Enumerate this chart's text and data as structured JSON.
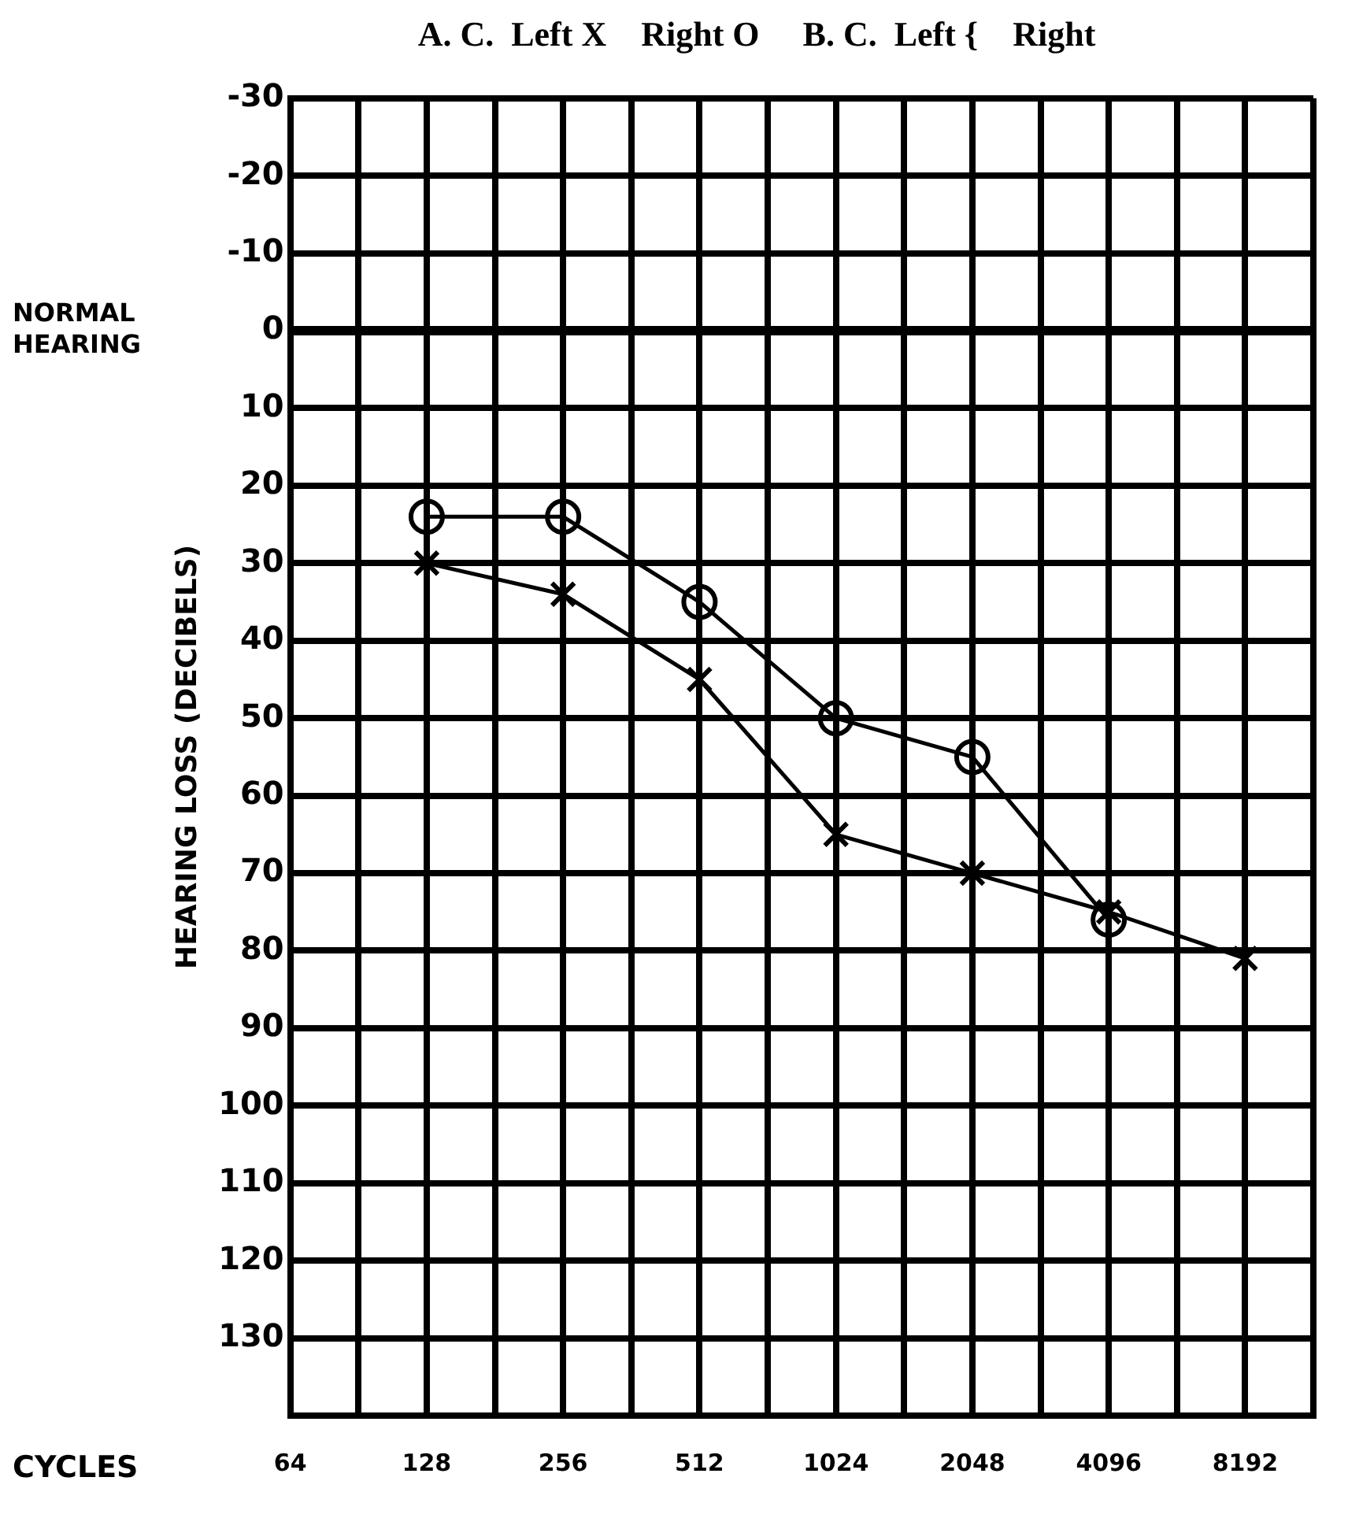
{
  "chart_data": {
    "type": "line",
    "title": "A. C.  Left X    Right O     B. C.  Left {    Right",
    "xlabel": "CYCLES",
    "ylabel": "HEARING LOSS (DECIBELS)",
    "categories": [
      "64",
      null,
      "128",
      null,
      "256",
      null,
      "512",
      null,
      "1024",
      null,
      "2048",
      null,
      "4096",
      null,
      "8192",
      null
    ],
    "series": [
      {
        "color": "#000000",
        "marker": "circle",
        "values": [
          null,
          null,
          24,
          null,
          24,
          null,
          35,
          null,
          50,
          null,
          55,
          null,
          76,
          null,
          null,
          null
        ]
      },
      {
        "color": "#000000",
        "marker": "cross",
        "values": [
          null,
          null,
          30,
          null,
          34,
          null,
          45,
          null,
          65,
          null,
          70,
          null,
          75,
          null,
          81,
          null
        ]
      }
    ],
    "ylim": [
      140,
      -30
    ],
    "yticks": [
      -30,
      -20,
      -10,
      0,
      10,
      20,
      30,
      40,
      50,
      60,
      70,
      80,
      90,
      100,
      110,
      120,
      130,
      {
        "value": 140,
        "label": null
      }
    ],
    "grid": true,
    "ref_lines": [
      {
        "axis": "y",
        "value": 0,
        "label": "NORMAL HEARING"
      }
    ]
  }
}
